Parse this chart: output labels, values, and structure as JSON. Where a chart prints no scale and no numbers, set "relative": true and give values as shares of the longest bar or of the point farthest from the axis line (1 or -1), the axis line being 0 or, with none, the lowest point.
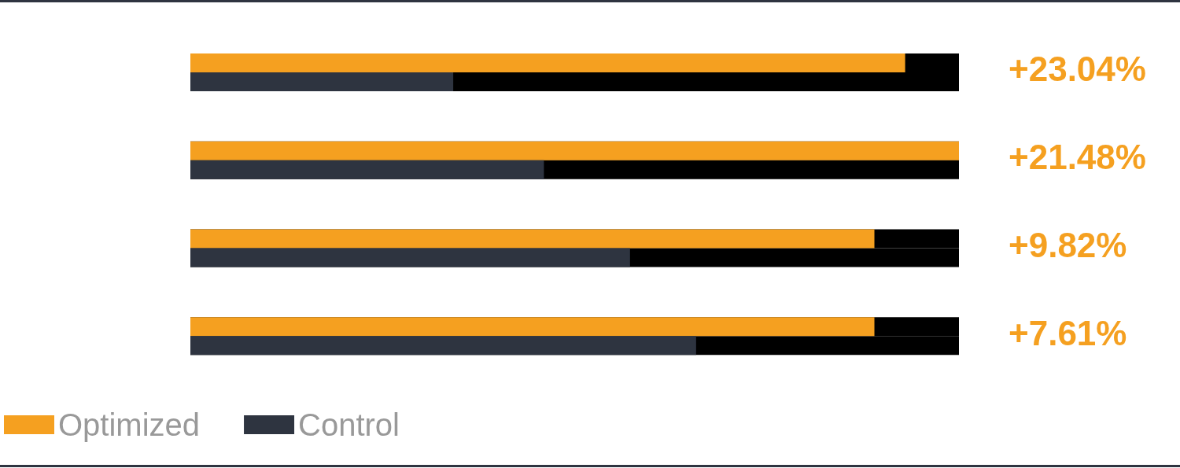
{
  "chart_data": {
    "type": "bar",
    "orientation": "horizontal",
    "relative": true,
    "categories": [
      null,
      null,
      null,
      null
    ],
    "series": [
      {
        "name": "Optimized",
        "color": "#f5a020",
        "values": [
          0.93,
          1,
          0.89,
          0.89
        ]
      },
      {
        "name": "Control",
        "color": "#2e3440",
        "values": [
          0.342,
          0.46,
          0.572,
          0.658
        ]
      }
    ],
    "annotations": [
      "+23.04%",
      "+21.48%",
      "+9.82%",
      "+7.61%"
    ],
    "legend": "bottom left"
  }
}
